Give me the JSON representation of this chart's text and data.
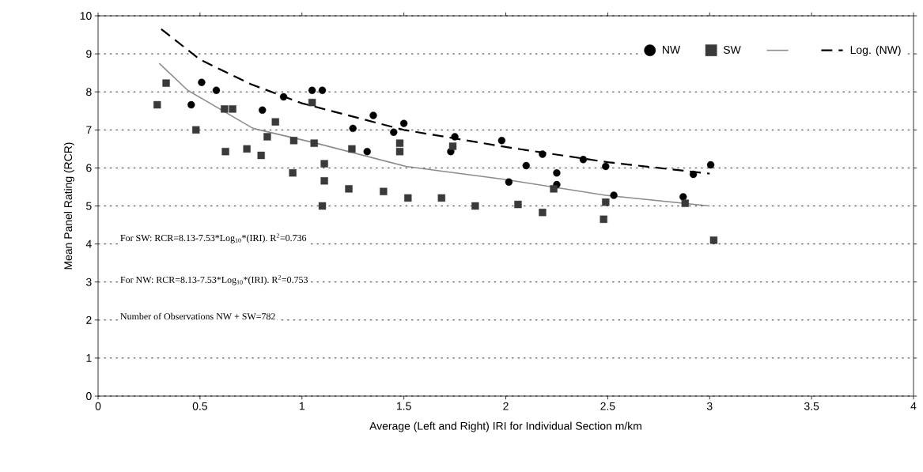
{
  "chart_data": {
    "type": "scatter",
    "xlabel": "Average (Left and Right) IRI for Individual Section m/km",
    "ylabel": "Mean Panel Rating (RCR)",
    "xlim": [
      0,
      4
    ],
    "ylim": [
      0,
      10
    ],
    "xticks": [
      0,
      0.5,
      1,
      1.5,
      2,
      2.5,
      3,
      3.5,
      4
    ],
    "yticks": [
      0,
      1,
      2,
      3,
      4,
      5,
      6,
      7,
      8,
      9,
      10
    ],
    "grid": "y",
    "legend": "top right",
    "annotations": [
      "For SW: RCR=8.13-7.53*Log$_{10}$*(IRI). R$^{2}$=0.736",
      "For NW: RCR=8.13-7.53*Log$_{10}$*(IRI). R$^{2}$=0.753",
      "Number of Observations NW + SW=782"
    ],
    "series": [
      {
        "name": "NW",
        "color": "#000000",
        "marker": "circle",
        "x": [
          0.457,
          0.508,
          0.58,
          0.806,
          0.91,
          1.05,
          1.1,
          1.25,
          1.32,
          1.35,
          1.45,
          1.5,
          1.73,
          1.75,
          1.98,
          2.015,
          2.1,
          2.18,
          2.25,
          2.25,
          2.38,
          2.49,
          2.53,
          2.87,
          2.92,
          3.005
        ],
        "values": [
          7.66,
          8.25,
          8.04,
          7.52,
          7.87,
          8.04,
          8.04,
          7.04,
          6.43,
          7.38,
          6.94,
          7.17,
          6.43,
          6.82,
          6.72,
          5.63,
          6.06,
          6.36,
          5.87,
          5.56,
          6.22,
          6.04,
          5.28,
          5.24,
          5.83,
          6.08
        ]
      },
      {
        "name": "SW",
        "color": "#3a3a3a",
        "marker": "square",
        "x": [
          0.29,
          0.334,
          0.48,
          0.62,
          0.625,
          0.66,
          0.73,
          0.8,
          0.83,
          0.87,
          0.955,
          0.96,
          1.05,
          1.06,
          1.1,
          1.11,
          1.11,
          1.23,
          1.245,
          1.4,
          1.48,
          1.48,
          1.52,
          1.685,
          1.74,
          1.85,
          2.06,
          2.18,
          2.235,
          2.48,
          2.49,
          2.88,
          3.02
        ],
        "values": [
          7.66,
          8.23,
          7.0,
          7.55,
          6.43,
          7.55,
          6.5,
          6.33,
          6.82,
          7.21,
          5.87,
          6.72,
          7.72,
          6.65,
          5.0,
          6.11,
          5.66,
          5.45,
          6.5,
          5.38,
          6.65,
          6.43,
          5.21,
          5.21,
          6.57,
          5.0,
          5.04,
          4.83,
          5.45,
          4.65,
          5.1,
          5.07,
          4.1
        ]
      },
      {
        "type": "line",
        "color": "#8c8c8c",
        "marker": "none",
        "line_style": "solid",
        "x": [
          0.3,
          0.44,
          0.76,
          1.07,
          1.51,
          1.99,
          2.49,
          3.0
        ],
        "values": [
          8.75,
          8.04,
          7.04,
          6.65,
          6.04,
          5.7,
          5.28,
          5.0
        ]
      },
      {
        "name": "Log. (NW)",
        "type": "line",
        "color": "#000000",
        "marker": "none",
        "line_style": "dashed",
        "x": [
          0.31,
          0.5,
          0.75,
          1.0,
          1.5,
          2.0,
          2.5,
          3.0
        ],
        "values": [
          9.65,
          8.85,
          8.2,
          7.7,
          7.0,
          6.55,
          6.15,
          5.85
        ]
      }
    ]
  }
}
